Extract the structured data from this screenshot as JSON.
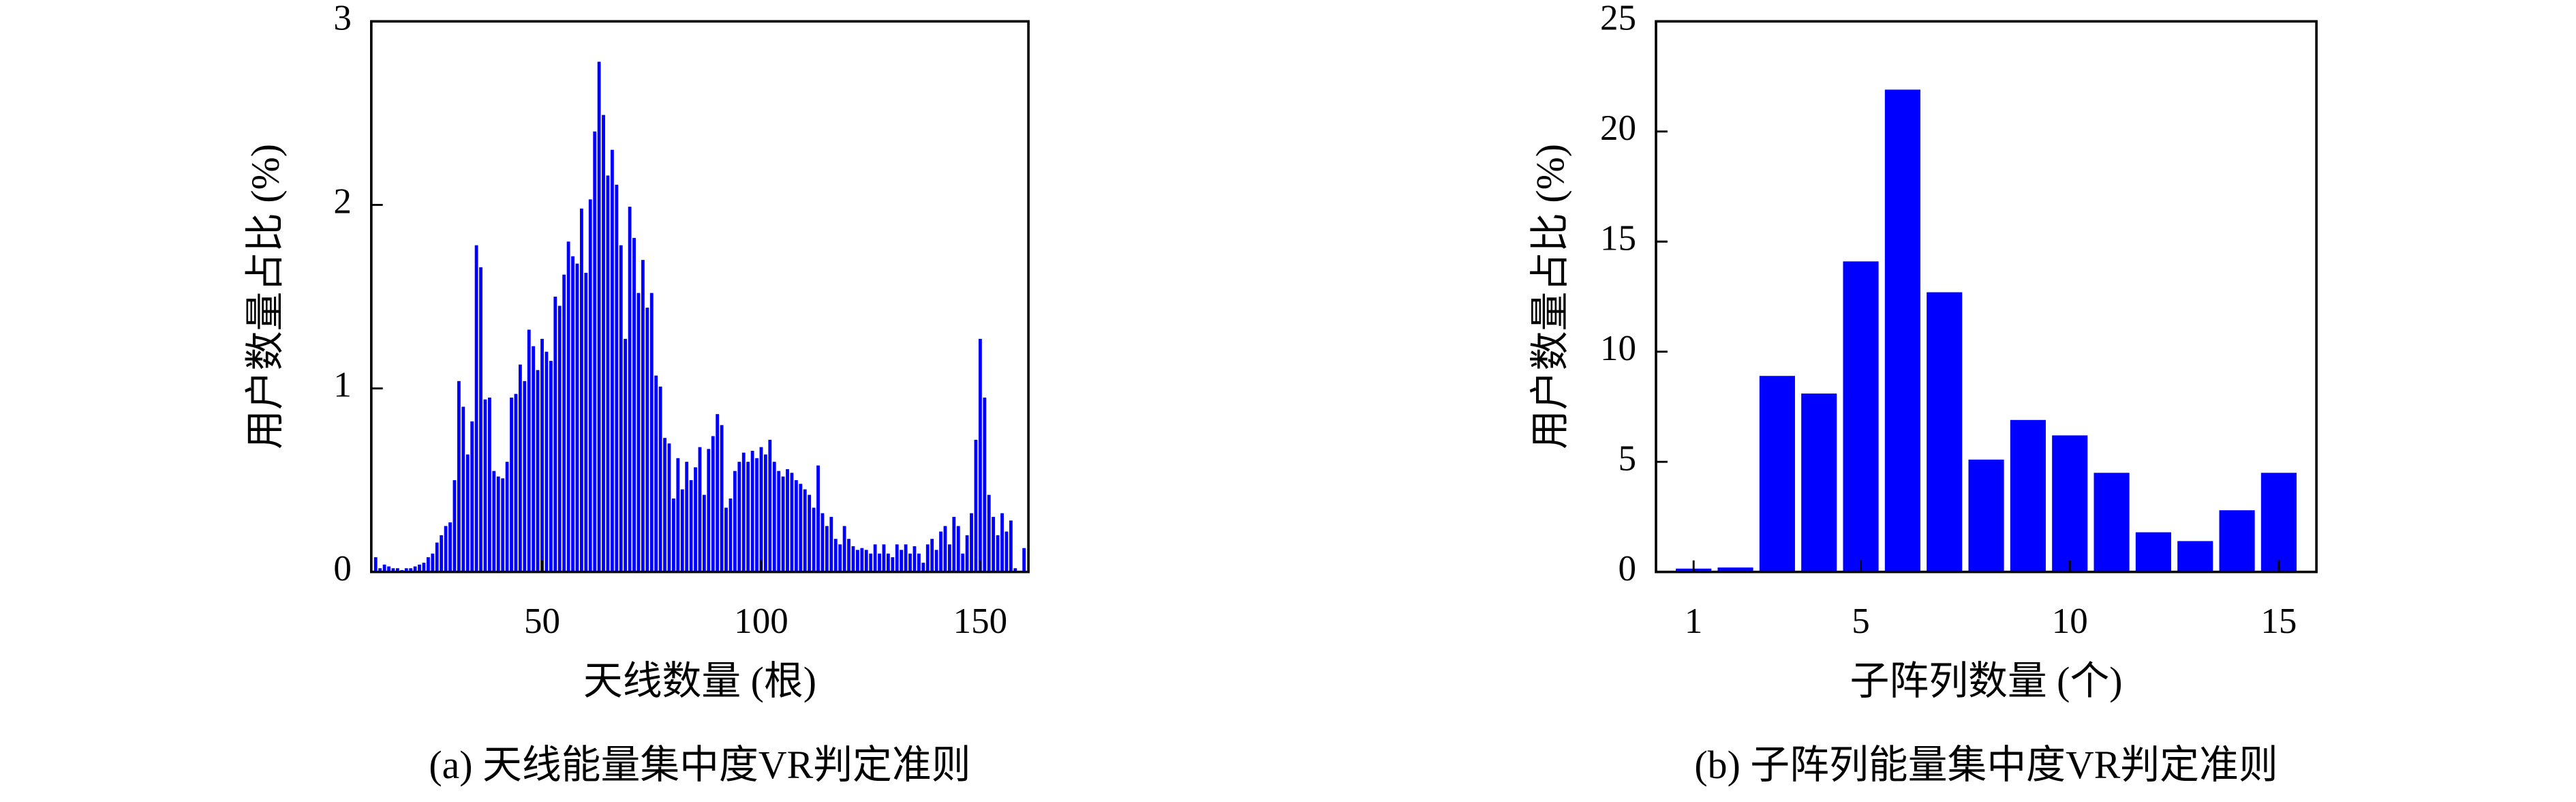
{
  "chart_data": [
    {
      "type": "bar",
      "ylabel": "用户数量占比 (%)",
      "xlabel": "天线数量 (根)",
      "caption": "(a) 天线能量集中度VR判定准则",
      "color": "#0000ff",
      "x": [
        12,
        13,
        14,
        15,
        16,
        17,
        18,
        19,
        20,
        21,
        22,
        23,
        24,
        25,
        26,
        27,
        28,
        29,
        30,
        31,
        32,
        33,
        34,
        35,
        36,
        37,
        38,
        39,
        40,
        41,
        42,
        43,
        44,
        45,
        46,
        47,
        48,
        49,
        50,
        51,
        52,
        53,
        54,
        55,
        56,
        57,
        58,
        59,
        60,
        61,
        62,
        63,
        64,
        65,
        66,
        67,
        68,
        69,
        70,
        71,
        72,
        73,
        74,
        75,
        76,
        77,
        78,
        79,
        80,
        81,
        82,
        83,
        84,
        85,
        86,
        87,
        88,
        89,
        90,
        91,
        92,
        93,
        94,
        95,
        96,
        97,
        98,
        99,
        100,
        101,
        102,
        103,
        104,
        105,
        106,
        107,
        108,
        109,
        110,
        111,
        112,
        113,
        114,
        115,
        116,
        117,
        118,
        119,
        120,
        121,
        122,
        123,
        124,
        125,
        126,
        127,
        128,
        129,
        130,
        131,
        132,
        133,
        134,
        135,
        136,
        137,
        138,
        139,
        140,
        141,
        142,
        143,
        144,
        145,
        146,
        147,
        148,
        149,
        150,
        151,
        152,
        153,
        154,
        155,
        156,
        157,
        158,
        159,
        160
      ],
      "values": [
        0.08,
        0.02,
        0.04,
        0.03,
        0.02,
        0.02,
        0.01,
        0.02,
        0.02,
        0.03,
        0.04,
        0.05,
        0.08,
        0.1,
        0.16,
        0.2,
        0.25,
        0.27,
        0.5,
        1.04,
        0.9,
        0.64,
        0.82,
        1.78,
        1.66,
        0.94,
        0.95,
        0.55,
        0.52,
        0.51,
        0.6,
        0.95,
        0.97,
        1.13,
        1.04,
        1.32,
        1.23,
        1.1,
        1.27,
        1.2,
        1.15,
        1.5,
        1.45,
        1.62,
        1.8,
        1.72,
        1.68,
        1.98,
        1.63,
        2.03,
        2.4,
        2.78,
        2.49,
        2.16,
        2.3,
        2.11,
        1.78,
        1.27,
        1.99,
        1.82,
        1.52,
        1.7,
        1.44,
        1.52,
        1.07,
        1.01,
        0.73,
        0.7,
        0.4,
        0.62,
        0.45,
        0.6,
        0.5,
        0.57,
        0.68,
        0.42,
        0.67,
        0.74,
        0.86,
        0.8,
        0.35,
        0.4,
        0.55,
        0.6,
        0.65,
        0.6,
        0.66,
        0.62,
        0.68,
        0.64,
        0.72,
        0.6,
        0.55,
        0.52,
        0.56,
        0.54,
        0.5,
        0.48,
        0.45,
        0.42,
        0.35,
        0.58,
        0.32,
        0.25,
        0.3,
        0.18,
        0.15,
        0.25,
        0.18,
        0.14,
        0.12,
        0.13,
        0.12,
        0.1,
        0.15,
        0.1,
        0.15,
        0.1,
        0.08,
        0.15,
        0.12,
        0.15,
        0.1,
        0.14,
        0.1,
        0.05,
        0.15,
        0.18,
        0.12,
        0.22,
        0.25,
        0.15,
        0.3,
        0.25,
        0.1,
        0.2,
        0.32,
        0.72,
        1.27,
        0.95,
        0.42,
        0.3,
        0.2,
        0.32,
        0.22,
        0.28,
        0.02,
        0,
        0.13
      ],
      "xlim": [
        11,
        161
      ],
      "xticks": [
        50,
        100,
        150
      ],
      "ylim": [
        0,
        3
      ],
      "yticks": [
        0,
        1,
        2,
        3
      ]
    },
    {
      "type": "bar",
      "ylabel": "用户数量占比 (%)",
      "xlabel": "子阵列数量 (个)",
      "caption": "(b) 子阵列能量集中度VR判定准则",
      "color": "#0000ff",
      "x": [
        1,
        2,
        3,
        4,
        5,
        6,
        7,
        8,
        9,
        10,
        11,
        12,
        13,
        14,
        15
      ],
      "values": [
        0.15,
        0.2,
        8.9,
        8.1,
        14.1,
        21.9,
        12.7,
        5.1,
        6.9,
        6.2,
        4.5,
        1.8,
        1.4,
        2.8,
        4.5
      ],
      "xlim": [
        0.1,
        15.9
      ],
      "xticks": [
        1,
        5,
        10,
        15
      ],
      "ylim": [
        0,
        25
      ],
      "yticks": [
        0,
        5,
        10,
        15,
        20,
        25
      ]
    }
  ]
}
